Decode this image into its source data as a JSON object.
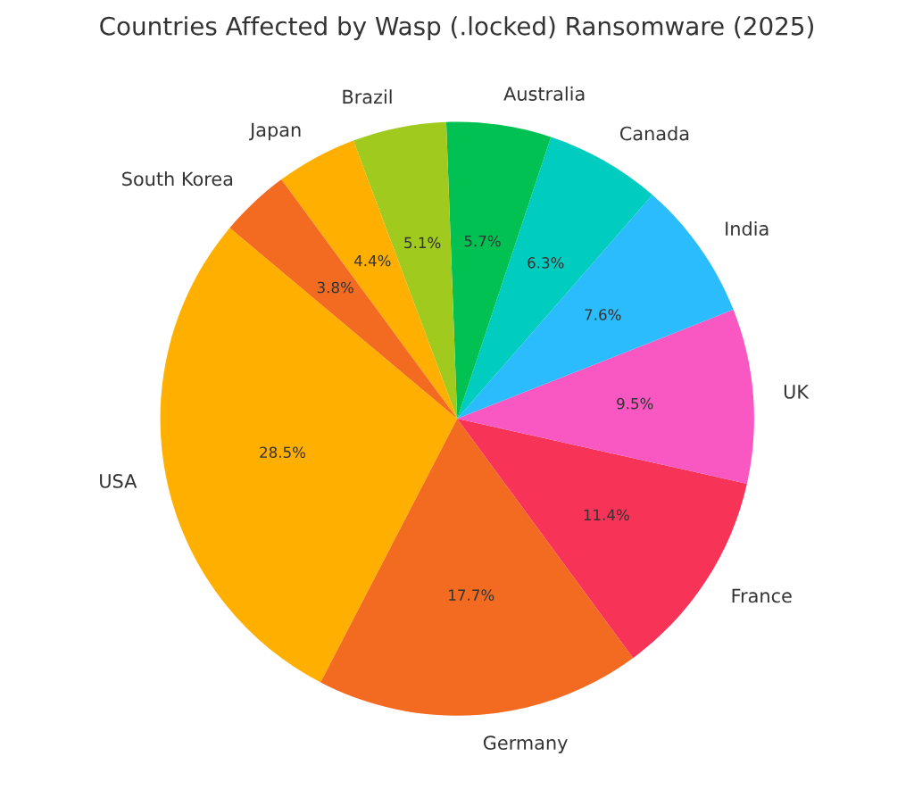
{
  "chart_data": {
    "type": "pie",
    "title": "Countries Affected by Wasp (.locked) Ransomware (2025)",
    "categories": [
      "USA",
      "Germany",
      "France",
      "UK",
      "India",
      "Canada",
      "Australia",
      "Brazil",
      "Japan",
      "South Korea"
    ],
    "values": [
      28.5,
      17.7,
      11.4,
      9.5,
      7.6,
      6.3,
      5.7,
      5.1,
      4.4,
      3.8
    ],
    "value_labels": [
      "28.5%",
      "17.7%",
      "11.4%",
      "9.5%",
      "7.6%",
      "6.3%",
      "5.7%",
      "5.1%",
      "4.4%",
      "3.8%"
    ],
    "colors": [
      "#ffaf00",
      "#f36b21",
      "#f73357",
      "#f957c1",
      "#2bbcfd",
      "#00ccc0",
      "#00c152",
      "#a0ca1e",
      "#ffaf00",
      "#f36b21"
    ]
  }
}
